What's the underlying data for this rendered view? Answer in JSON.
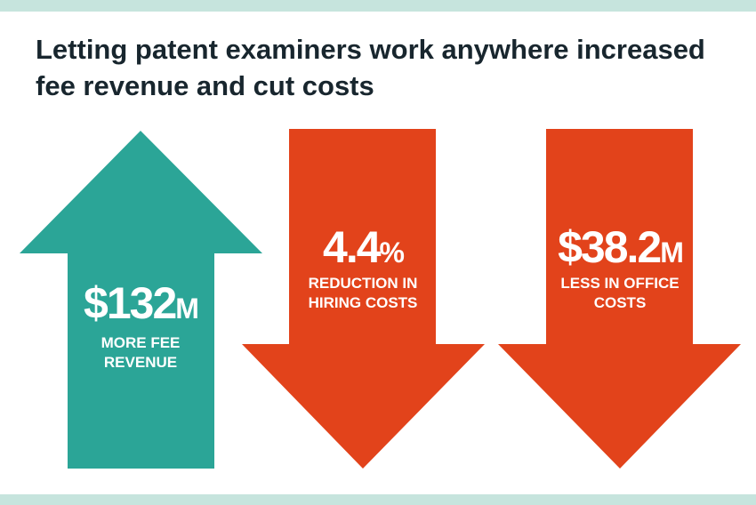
{
  "title": [
    "Letting patent examiners work anywhere increased",
    "fee revenue and cut costs"
  ],
  "arrows": [
    {
      "value": "$132",
      "unit": "M",
      "lines": [
        "MORE FEE",
        "REVENUE"
      ]
    },
    {
      "value": "4.4",
      "unit": "%",
      "lines": [
        "REDUCTION IN",
        "HIRING COSTS"
      ]
    },
    {
      "value": "$38.2",
      "unit": "M",
      "lines": [
        "LESS IN OFFICE",
        "COSTS"
      ]
    }
  ]
}
